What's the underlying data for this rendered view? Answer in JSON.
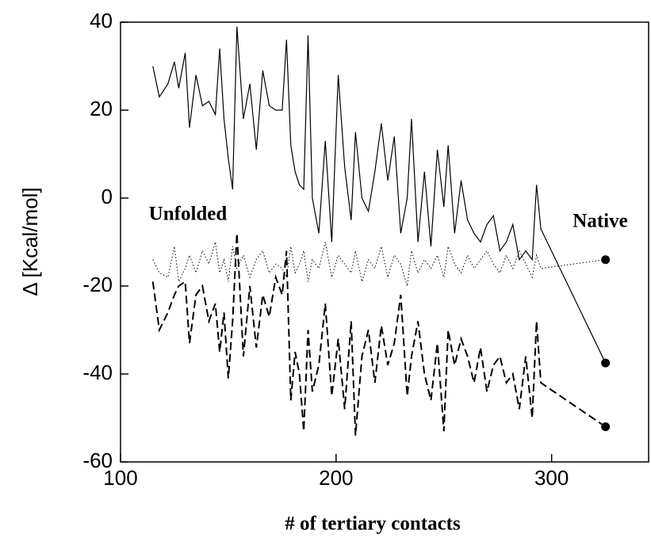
{
  "chart_data": {
    "type": "line",
    "xlabel": "# of tertiary contacts",
    "ylabel": "Δ [Kcal/mol]",
    "annotations": [
      "Unfolded",
      "Native"
    ],
    "xlim": [
      100,
      345
    ],
    "xticks": [
      100,
      200,
      300
    ],
    "ylim": [
      -60,
      40
    ],
    "yticks": [
      -60,
      -40,
      -20,
      0,
      20,
      40
    ],
    "end_marker": true,
    "x": [
      115,
      118,
      122,
      125,
      127,
      130,
      132,
      135,
      138,
      141,
      144,
      146,
      148,
      150,
      152,
      154,
      157,
      160,
      163,
      166,
      169,
      172,
      175,
      177,
      179,
      181,
      183,
      185,
      187,
      189,
      192,
      195,
      198,
      201,
      204,
      207,
      209,
      212,
      215,
      218,
      221,
      224,
      227,
      230,
      233,
      235,
      238,
      241,
      244,
      247,
      250,
      252,
      255,
      258,
      261,
      264,
      267,
      270,
      273,
      276,
      279,
      282,
      285,
      288,
      291,
      293,
      295,
      325
    ],
    "series": [
      {
        "color": "#000000",
        "dash": "solid",
        "values": [
          30,
          23,
          26,
          31,
          25,
          33,
          16,
          28,
          21,
          22,
          19,
          34,
          18,
          9,
          2,
          39,
          18,
          26,
          11,
          29,
          21,
          20,
          20,
          36,
          12,
          6,
          3,
          2,
          37,
          0,
          -8,
          13,
          -10,
          28,
          7,
          -5,
          15,
          0,
          -3,
          6,
          17,
          4,
          14,
          -8,
          0,
          18,
          -10,
          6,
          -11,
          11,
          -2,
          12,
          -8,
          4,
          -5,
          -8,
          -10,
          -6,
          -4,
          -12,
          -10,
          -6,
          -14,
          -12,
          -14,
          3,
          -7,
          -37.5
        ]
      },
      {
        "color": "#000000",
        "dash": "dotted",
        "values": [
          -14,
          -17,
          -18,
          -11,
          -19,
          -16,
          -13,
          -17,
          -12,
          -15,
          -10,
          -17,
          -14,
          -19,
          -11,
          -16,
          -13,
          -18,
          -14,
          -12,
          -17,
          -15,
          -16,
          -18,
          -11,
          -17,
          -15,
          -12,
          -19,
          -14,
          -16,
          -10,
          -18,
          -13,
          -15,
          -17,
          -12,
          -19,
          -14,
          -16,
          -11,
          -18,
          -13,
          -15,
          -20,
          -12,
          -17,
          -14,
          -16,
          -13,
          -18,
          -11,
          -15,
          -17,
          -13,
          -16,
          -14,
          -12,
          -15,
          -17,
          -13,
          -16,
          -12,
          -15,
          -18,
          -13,
          -16,
          -14
        ]
      },
      {
        "color": "#000000",
        "dash": "dashed",
        "values": [
          -19,
          -30,
          -26,
          -22,
          -20,
          -19,
          -33,
          -22,
          -20,
          -28,
          -24,
          -35,
          -26,
          -41,
          -28,
          -8,
          -36,
          -20,
          -34,
          -22,
          -27,
          -18,
          -22,
          -12,
          -46,
          -35,
          -40,
          -53,
          -30,
          -44,
          -38,
          -24,
          -45,
          -32,
          -48,
          -28,
          -54,
          -36,
          -30,
          -42,
          -29,
          -38,
          -33,
          -22,
          -45,
          -36,
          -28,
          -40,
          -46,
          -33,
          -53,
          -30,
          -38,
          -32,
          -36,
          -42,
          -34,
          -44,
          -38,
          -36,
          -42,
          -40,
          -48,
          -36,
          -50,
          -28,
          -42,
          -52
        ]
      }
    ]
  }
}
